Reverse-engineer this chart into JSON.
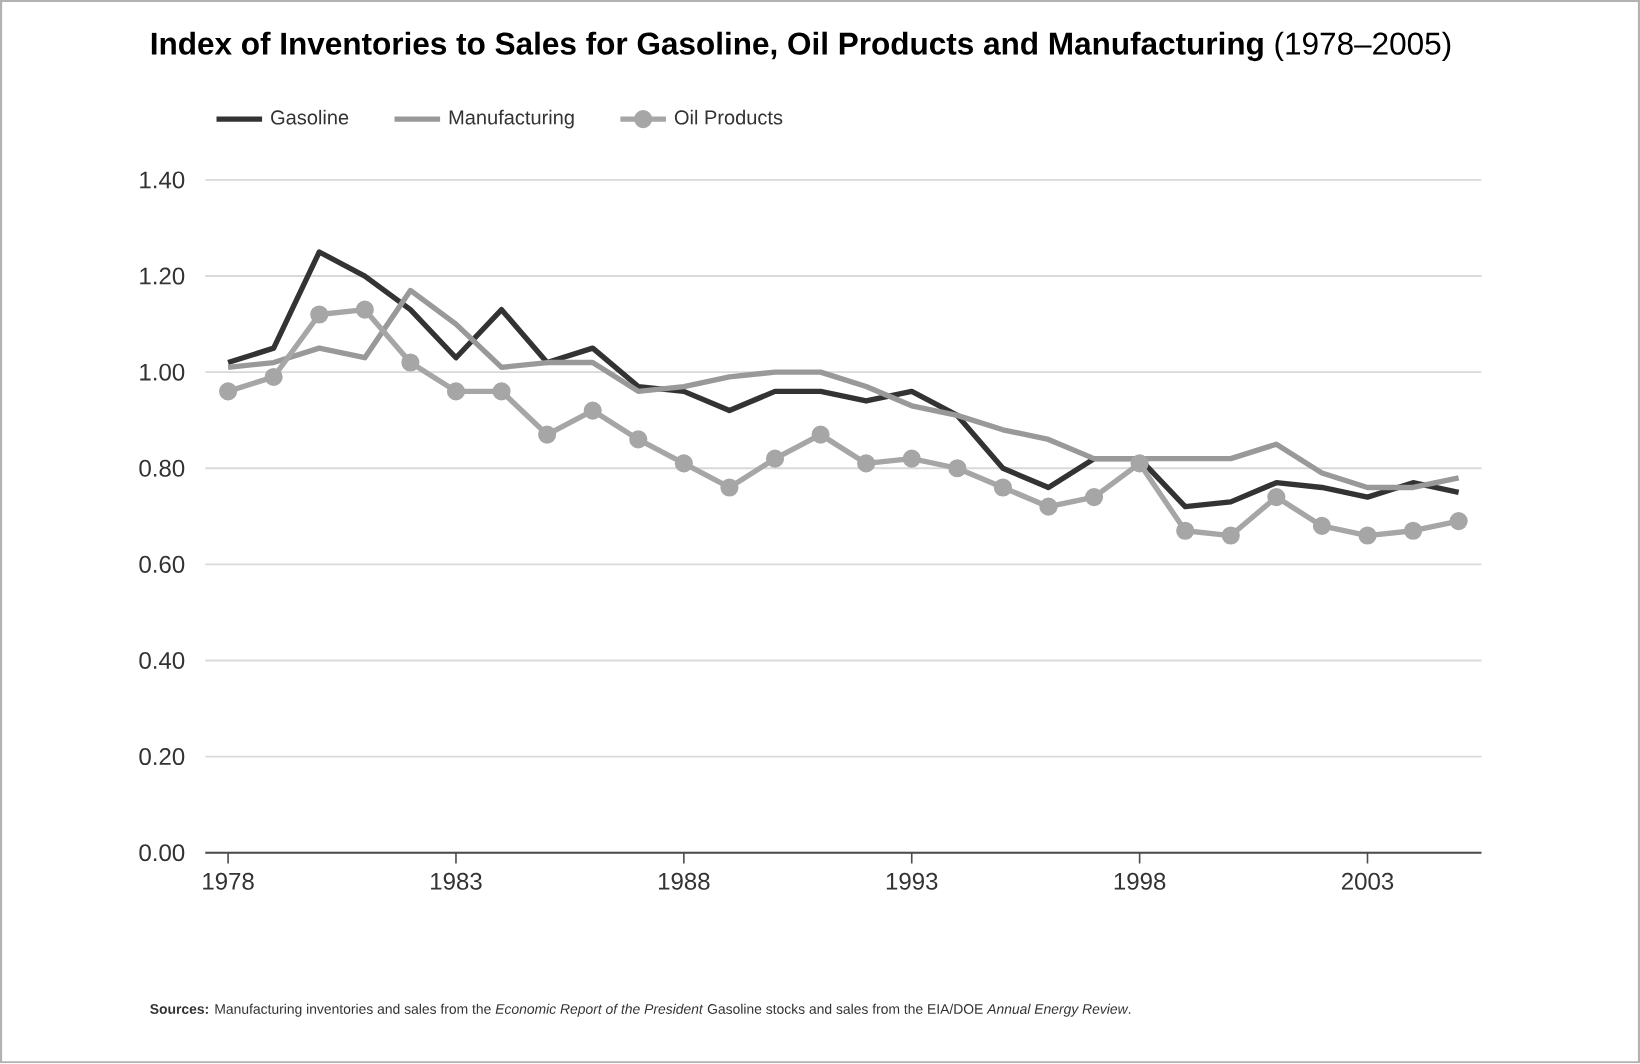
{
  "chart_data": {
    "type": "line",
    "title": "**Index of Inventories to Sales for Gasoline, Oil Products and Manufacturing** (1978–2005)",
    "x": [
      1978,
      1979,
      1980,
      1981,
      1982,
      1983,
      1984,
      1985,
      1986,
      1987,
      1988,
      1989,
      1990,
      1991,
      1992,
      1993,
      1994,
      1995,
      1996,
      1997,
      1998,
      1999,
      2000,
      2001,
      2002,
      2003,
      2004,
      2005
    ],
    "series": [
      {
        "name": "Gasoline",
        "color": "#333333",
        "marker": "none",
        "values": [
          1.02,
          1.05,
          1.25,
          1.2,
          1.13,
          1.03,
          1.13,
          1.02,
          1.05,
          0.97,
          0.96,
          0.92,
          0.96,
          0.96,
          0.94,
          0.96,
          0.91,
          0.8,
          0.76,
          0.82,
          0.82,
          0.72,
          0.73,
          0.77,
          0.76,
          0.74,
          0.77,
          0.75
        ]
      },
      {
        "name": "Manufacturing",
        "color": "#999999",
        "marker": "none",
        "values": [
          1.01,
          1.02,
          1.05,
          1.03,
          1.17,
          1.1,
          1.01,
          1.02,
          1.02,
          0.96,
          0.97,
          0.99,
          1.0,
          1.0,
          0.97,
          0.93,
          0.91,
          0.88,
          0.86,
          0.82,
          0.82,
          0.82,
          0.82,
          0.85,
          0.79,
          0.76,
          0.76,
          0.78
        ]
      },
      {
        "name": "Oil Products",
        "color": "#a6a6a6",
        "marker": "circle",
        "values": [
          0.96,
          0.99,
          1.12,
          1.13,
          1.02,
          0.96,
          0.96,
          0.87,
          0.92,
          0.86,
          0.81,
          0.76,
          0.82,
          0.87,
          0.81,
          0.82,
          0.8,
          0.76,
          0.72,
          0.74,
          0.81,
          0.67,
          0.66,
          0.74,
          0.68,
          0.66,
          0.67,
          0.69
        ]
      }
    ],
    "xlim": [
      1977.5,
      2005.5
    ],
    "xticks": [
      1978,
      1983,
      1988,
      1993,
      1998,
      2003
    ],
    "ylim": [
      0,
      1.4
    ],
    "yticks": [
      {
        "value": 0,
        "label": "0.00"
      },
      {
        "value": 0.2,
        "label": "0.20"
      },
      {
        "value": 0.4,
        "label": "0.40"
      },
      {
        "value": 0.6,
        "label": "0.60"
      },
      {
        "value": 0.8,
        "label": "0.80"
      },
      {
        "value": 1.0,
        "label": "1.00"
      },
      {
        "value": 1.2,
        "label": "1.20"
      },
      {
        "value": 1.4,
        "label": "1.40"
      }
    ],
    "grid": "y",
    "legend": "top left",
    "line_style": "solid",
    "annotations": [
      "**Sources:** Manufacturing inventories and sales from the *Economic Report of the President* Gasoline stocks and sales from the EIA/DOE *Annual Energy Review*."
    ]
  }
}
